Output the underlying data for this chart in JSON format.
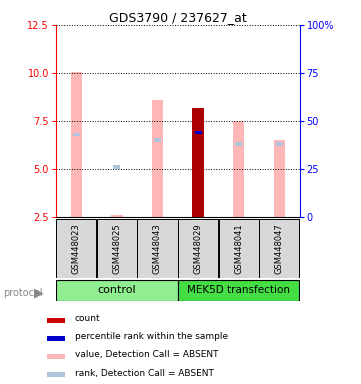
{
  "title": "GDS3790 / 237627_at",
  "samples": [
    "GSM448023",
    "GSM448025",
    "GSM448043",
    "GSM448029",
    "GSM448041",
    "GSM448047"
  ],
  "ylim_left": [
    2.5,
    12.5
  ],
  "ylim_right": [
    0,
    100
  ],
  "yticks_left": [
    2.5,
    5.0,
    7.5,
    10.0,
    12.5
  ],
  "yticks_right": [
    0,
    25,
    50,
    75,
    100
  ],
  "value_bars": [
    10.05,
    2.62,
    8.6,
    null,
    7.5,
    6.5
  ],
  "value_bar_color": "#ffb6b6",
  "rank_values": [
    6.8,
    5.1,
    6.5,
    null,
    6.3,
    6.3
  ],
  "rank_bar_color": "#b0c4de",
  "count_bar_val": 8.2,
  "count_bar_idx": 3,
  "count_bar_color": "#aa0000",
  "percentile_val": 6.9,
  "percentile_idx": 3,
  "percentile_bar_color": "#0000cc",
  "bar_bottom": 2.5,
  "bar_width": 0.28,
  "rank_square_size": 0.18,
  "bg_color": "#d8d8d8",
  "ctrl_color": "#90ee90",
  "mek_color": "#44dd44",
  "legend_items": [
    {
      "color": "#cc0000",
      "label": "count"
    },
    {
      "color": "#0000cc",
      "label": "percentile rank within the sample"
    },
    {
      "color": "#ffb6b6",
      "label": "value, Detection Call = ABSENT"
    },
    {
      "color": "#b0c4de",
      "label": "rank, Detection Call = ABSENT"
    }
  ]
}
